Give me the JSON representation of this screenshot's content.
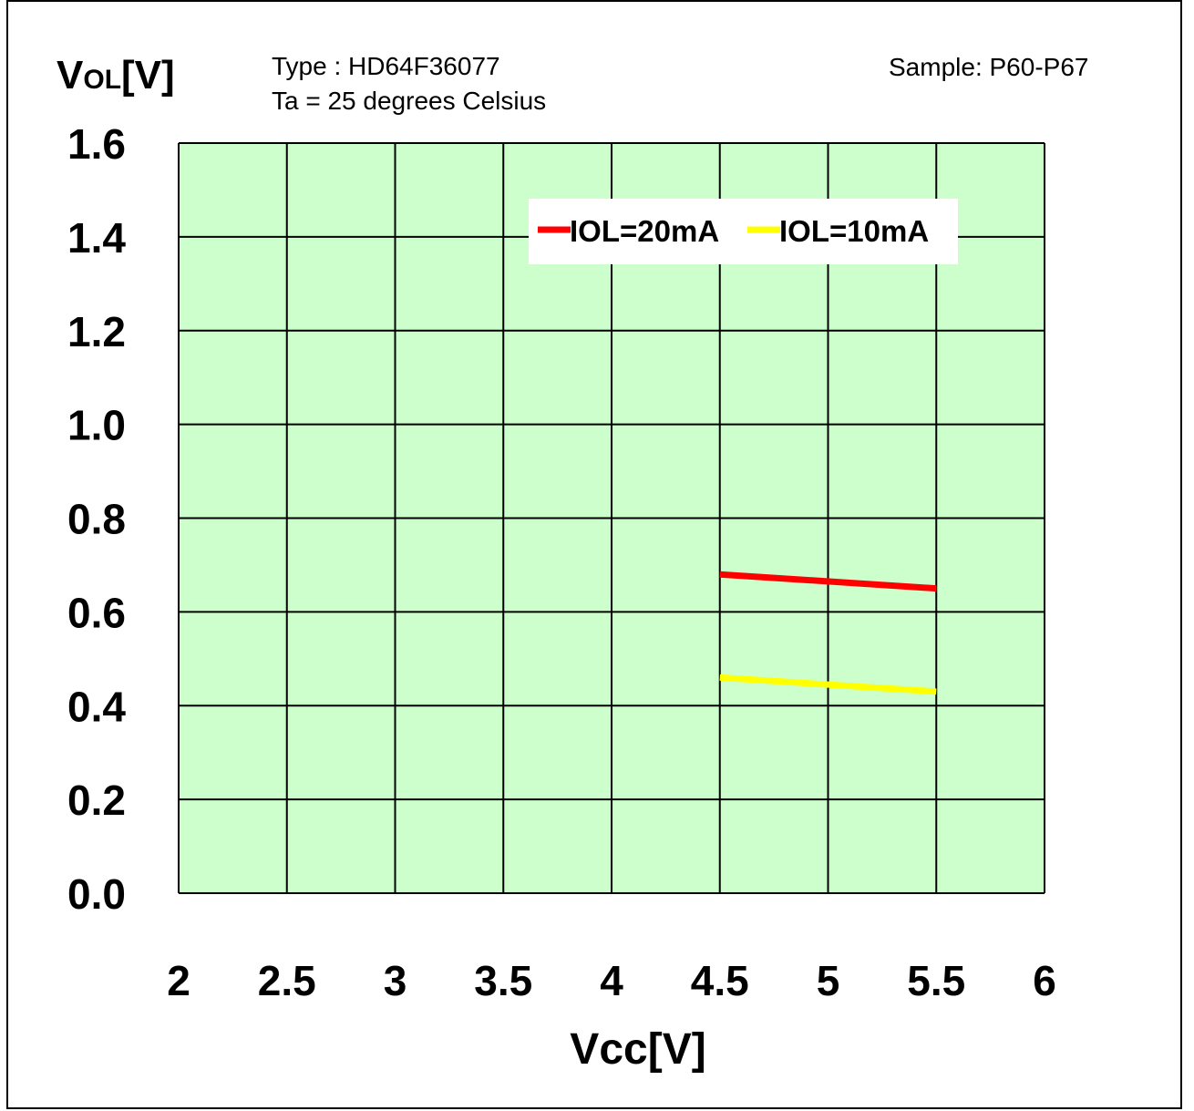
{
  "header": {
    "ylabel_main": "V",
    "ylabel_sub": "OL",
    "ylabel_unit": "[V]",
    "type_line": "Type : HD64F36077",
    "ta_line": "Ta = 25 degrees Celsius",
    "sample": "Sample: P60-P67"
  },
  "chart_data": {
    "type": "line",
    "xlabel": "Vcc[V]",
    "ylabel": "VOL[V]",
    "xlim": [
      2,
      6
    ],
    "ylim": [
      0.0,
      1.6
    ],
    "xticks": [
      "2",
      "2.5",
      "3",
      "3.5",
      "4",
      "4.5",
      "5",
      "5.5",
      "6"
    ],
    "yticks": [
      "0.0",
      "0.2",
      "0.4",
      "0.6",
      "0.8",
      "1.0",
      "1.2",
      "1.4",
      "1.6"
    ],
    "grid": true,
    "legend_position": "top-right",
    "plot_background": "#ccffcc",
    "series": [
      {
        "name": "IOL=20mA",
        "color": "#ff0000",
        "x": [
          4.5,
          5.5
        ],
        "y": [
          0.68,
          0.65
        ]
      },
      {
        "name": "IOL=10mA",
        "color": "#ffff00",
        "x": [
          4.5,
          5.5
        ],
        "y": [
          0.46,
          0.43
        ]
      }
    ]
  }
}
